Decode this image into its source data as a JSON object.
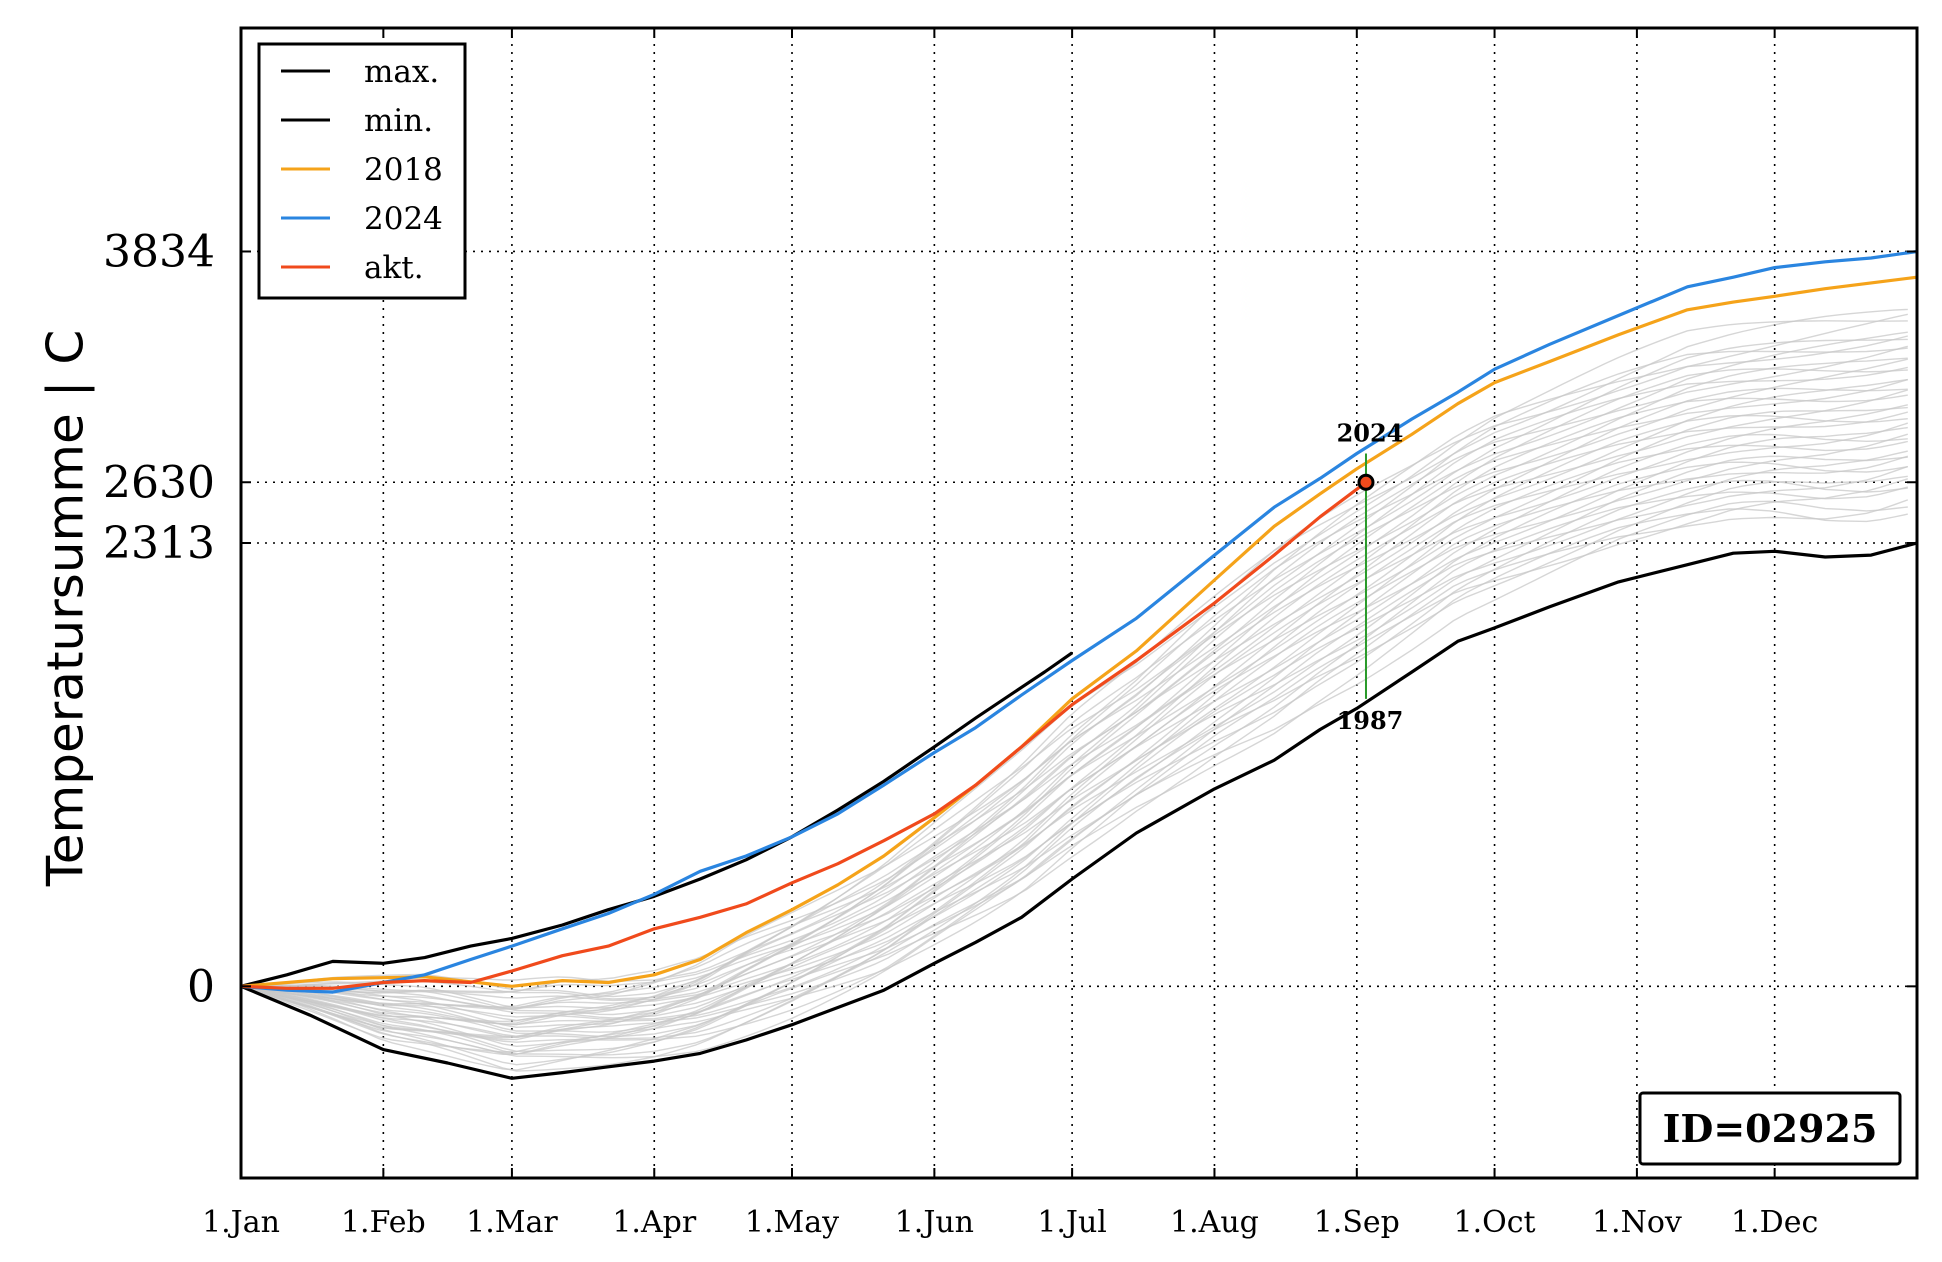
{
  "chart_data": {
    "type": "line",
    "title": "",
    "xlabel": "",
    "ylabel": "Temperatursumme | C",
    "x_ticks": [
      {
        "day": 0,
        "label": "1.Jan"
      },
      {
        "day": 31,
        "label": "1.Feb"
      },
      {
        "day": 59,
        "label": "1.Mar"
      },
      {
        "day": 90,
        "label": "1.Apr"
      },
      {
        "day": 120,
        "label": "1.May"
      },
      {
        "day": 151,
        "label": "1.Jun"
      },
      {
        "day": 181,
        "label": "1.Jul"
      },
      {
        "day": 212,
        "label": "1.Aug"
      },
      {
        "day": 243,
        "label": "1.Sep"
      },
      {
        "day": 273,
        "label": "1.Oct"
      },
      {
        "day": 304,
        "label": "1.Nov"
      },
      {
        "day": 334,
        "label": "1.Dec"
      }
    ],
    "xlim": [
      0,
      365
    ],
    "y_ticks": [
      {
        "value": 0,
        "label": "0"
      },
      {
        "value": 2313,
        "label": "2313"
      },
      {
        "value": 2630,
        "label": "2630"
      },
      {
        "value": 3834,
        "label": "3834"
      }
    ],
    "ylim": [
      -1000,
      5000
    ],
    "grid": true,
    "legend_position": "top-left",
    "series": [
      {
        "name": "max.",
        "color": "#000000",
        "x": [
          0,
          10,
          20,
          31,
          40,
          50,
          59,
          70,
          80,
          90,
          100,
          110,
          120,
          130,
          140,
          151,
          160,
          170,
          175,
          181
        ],
        "values": [
          0,
          60,
          130,
          120,
          150,
          210,
          250,
          320,
          400,
          470,
          560,
          660,
          780,
          920,
          1070,
          1250,
          1400,
          1560,
          1640,
          1740
        ]
      },
      {
        "name": "min.",
        "color": "#000000",
        "x": [
          0,
          15,
          31,
          45,
          59,
          70,
          80,
          90,
          100,
          110,
          120,
          140,
          151,
          160,
          170,
          181,
          195,
          212,
          225,
          235,
          243,
          255,
          265,
          273,
          285,
          300,
          315,
          325,
          334,
          345,
          355,
          365
        ],
        "values": [
          0,
          -150,
          -330,
          -400,
          -480,
          -450,
          -420,
          -390,
          -350,
          -280,
          -200,
          -20,
          120,
          230,
          360,
          560,
          800,
          1030,
          1180,
          1340,
          1450,
          1640,
          1800,
          1870,
          1980,
          2110,
          2200,
          2260,
          2270,
          2240,
          2250,
          2313
        ]
      },
      {
        "name": "2018",
        "color": "#f5a31a",
        "x": [
          0,
          20,
          40,
          59,
          70,
          80,
          90,
          100,
          110,
          120,
          130,
          140,
          151,
          160,
          170,
          181,
          195,
          212,
          225,
          235,
          243,
          255,
          265,
          273,
          285,
          300,
          315,
          325,
          334,
          345,
          355,
          365
        ],
        "values": [
          0,
          40,
          50,
          0,
          30,
          20,
          60,
          140,
          280,
          400,
          530,
          680,
          880,
          1050,
          1250,
          1500,
          1750,
          2120,
          2400,
          2570,
          2700,
          2880,
          3040,
          3150,
          3260,
          3400,
          3530,
          3570,
          3600,
          3640,
          3670,
          3700
        ]
      },
      {
        "name": "2024",
        "color": "#2a85e0",
        "x": [
          0,
          10,
          20,
          31,
          40,
          50,
          59,
          70,
          80,
          90,
          100,
          110,
          120,
          130,
          140,
          151,
          160,
          170,
          181,
          195,
          212,
          225,
          235,
          243,
          255,
          265,
          273,
          285,
          300,
          315,
          325,
          334,
          345,
          355,
          365
        ],
        "values": [
          0,
          -20,
          -30,
          20,
          60,
          140,
          210,
          300,
          380,
          480,
          600,
          680,
          780,
          900,
          1050,
          1220,
          1350,
          1520,
          1700,
          1920,
          2250,
          2500,
          2650,
          2780,
          2960,
          3100,
          3220,
          3350,
          3500,
          3650,
          3700,
          3750,
          3780,
          3800,
          3834
        ]
      },
      {
        "name": "akt.",
        "color": "#f04a1c",
        "x": [
          0,
          10,
          20,
          31,
          40,
          50,
          59,
          70,
          80,
          90,
          100,
          110,
          120,
          130,
          140,
          151,
          160,
          170,
          181,
          195,
          212,
          225,
          235,
          245
        ],
        "values": [
          0,
          -10,
          -10,
          20,
          30,
          20,
          80,
          160,
          210,
          300,
          360,
          430,
          540,
          640,
          760,
          900,
          1050,
          1250,
          1470,
          1700,
          2000,
          2250,
          2450,
          2630
        ]
      }
    ],
    "background_series_color": "#c8c8c8",
    "annotations": {
      "marker": {
        "x": 245,
        "y": 2630,
        "fill": "#f04a1c"
      },
      "top_label": "2024",
      "top_label_y": 2780,
      "bottom_label": "1987",
      "bottom_label_y": 1500,
      "line_color": "#2a9a2a"
    },
    "id_label": "ID=02925"
  }
}
